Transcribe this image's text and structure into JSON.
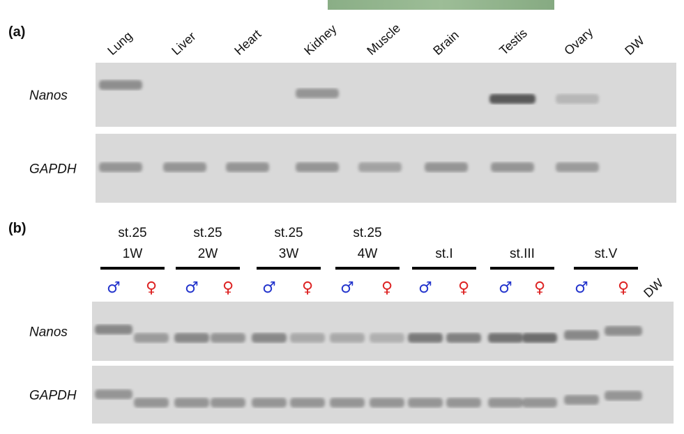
{
  "panel_a": {
    "label": "(a)",
    "lanes": [
      "Lung",
      "Liver",
      "Heart",
      "Kidney",
      "Muscle",
      "Brain",
      "Testis",
      "Ovary",
      "DW"
    ],
    "rows": [
      {
        "gene": "Nanos",
        "band_intensity": [
          0.55,
          0,
          0,
          0.5,
          0,
          0,
          0.95,
          0.25,
          0
        ],
        "band_offset": [
          -1,
          0,
          0,
          0,
          0,
          0,
          0.5,
          0.5,
          0
        ]
      },
      {
        "gene": "GAPDH",
        "band_intensity": [
          0.5,
          0.5,
          0.5,
          0.5,
          0.4,
          0.5,
          0.5,
          0.45,
          0
        ],
        "band_offset": [
          0,
          0,
          0,
          0,
          0,
          0,
          0,
          0,
          0
        ]
      }
    ]
  },
  "panel_b": {
    "label": "(b)",
    "groups": [
      {
        "line1": "st.25",
        "line2": "1W"
      },
      {
        "line1": "st.25",
        "line2": "2W"
      },
      {
        "line1": "st.25",
        "line2": "3W"
      },
      {
        "line1": "st.25",
        "line2": "4W"
      },
      {
        "line1": "",
        "line2": "st.I"
      },
      {
        "line1": "",
        "line2": "st.III"
      },
      {
        "line1": "",
        "line2": "st.V"
      }
    ],
    "male_symbol": "♂",
    "female_symbol": "♀",
    "male_color": "#2233cc",
    "female_color": "#dd2222",
    "dw_label": "DW",
    "rows": [
      {
        "gene": "Nanos",
        "band_intensity": [
          0.6,
          0.45,
          0.6,
          0.5,
          0.6,
          0.35,
          0.35,
          0.3,
          0.7,
          0.65,
          0.75,
          0.8,
          0.6,
          0.55,
          0
        ]
      },
      {
        "gene": "GAPDH",
        "band_intensity": [
          0.5,
          0.5,
          0.5,
          0.5,
          0.5,
          0.5,
          0.5,
          0.5,
          0.5,
          0.5,
          0.5,
          0.5,
          0.5,
          0.5,
          0
        ]
      }
    ]
  },
  "colors": {
    "gel_background": "#d9d9d9",
    "band": "#3a3a3a",
    "top_bar": "#8fb38a"
  }
}
